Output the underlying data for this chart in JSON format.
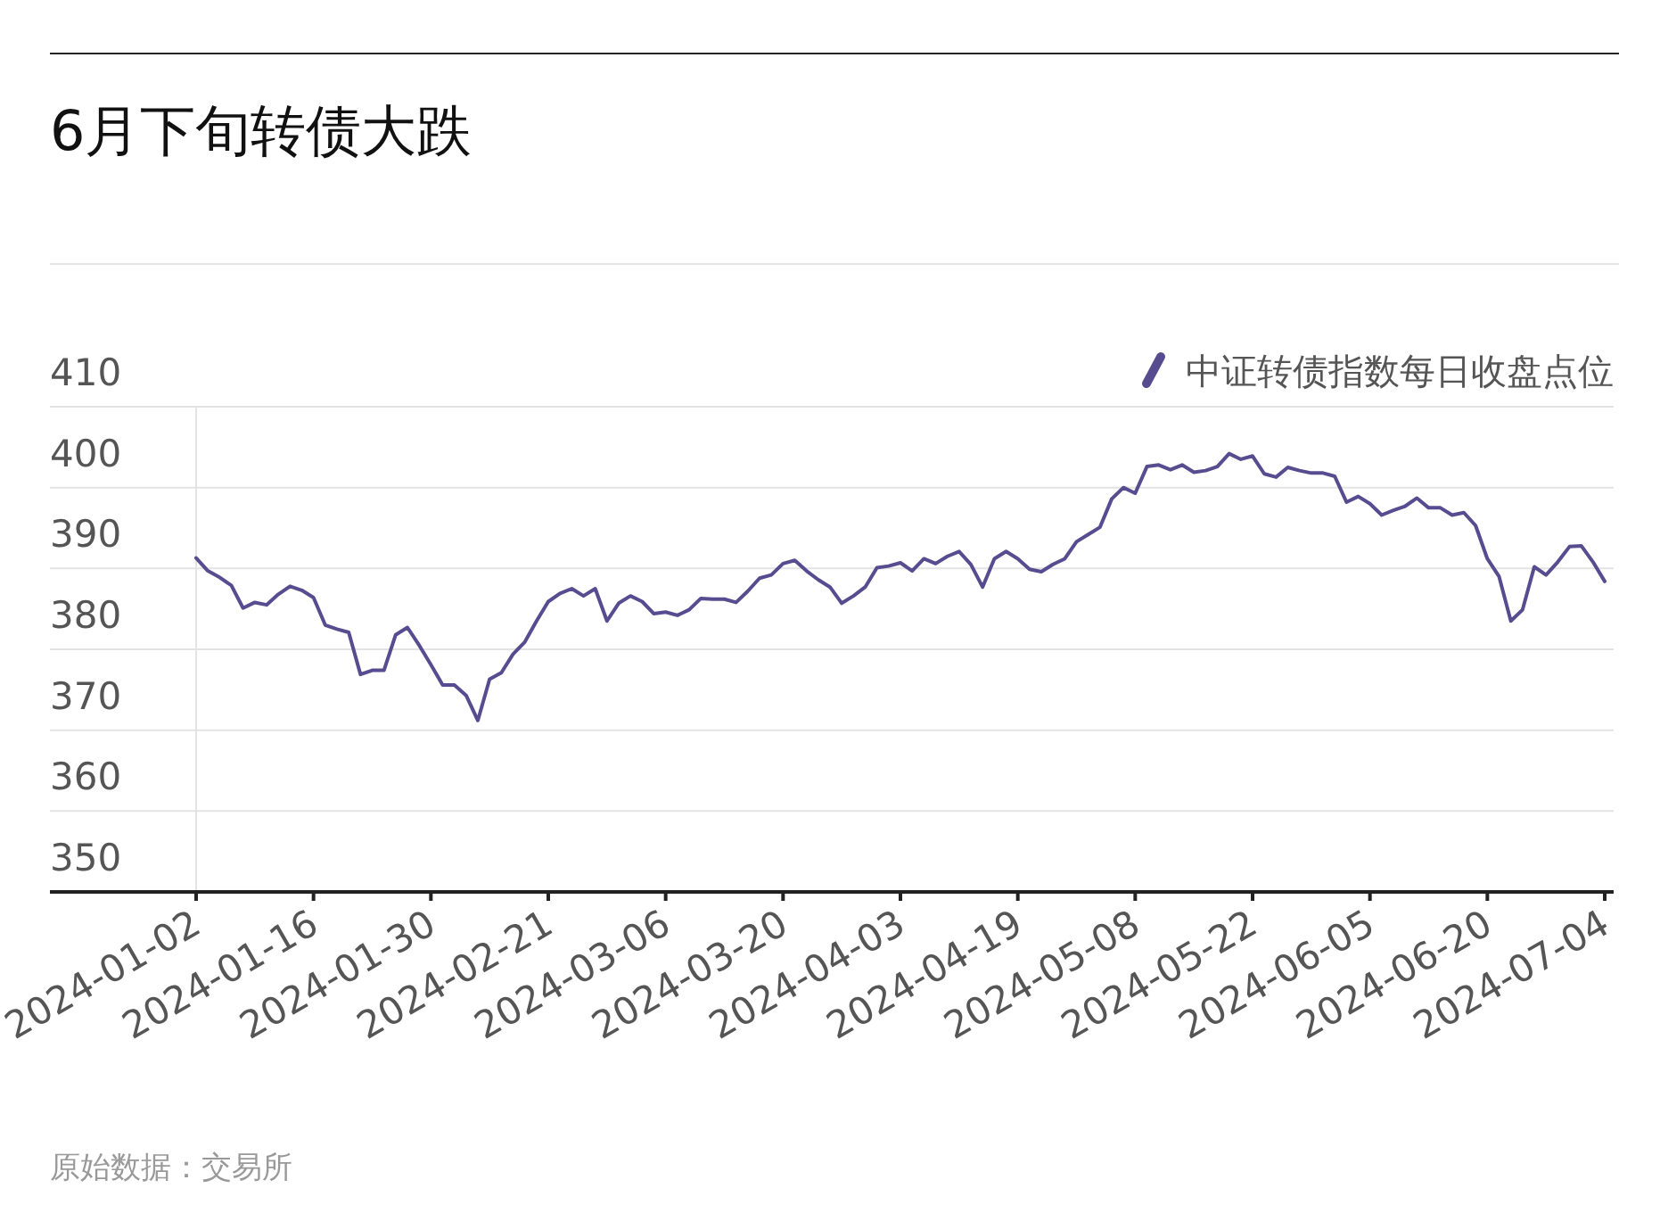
{
  "chart_data": {
    "type": "line",
    "title": "6月下旬转债大跌",
    "categories": [
      "2024-01-02",
      null,
      null,
      null,
      null,
      null,
      null,
      null,
      null,
      null,
      "2024-01-16",
      null,
      null,
      null,
      null,
      null,
      null,
      null,
      null,
      null,
      "2024-01-30",
      null,
      null,
      null,
      null,
      null,
      null,
      null,
      null,
      null,
      "2024-02-21",
      null,
      null,
      null,
      null,
      null,
      null,
      null,
      null,
      null,
      "2024-03-06",
      null,
      null,
      null,
      null,
      null,
      null,
      null,
      null,
      null,
      "2024-03-20",
      null,
      null,
      null,
      null,
      null,
      null,
      null,
      null,
      null,
      "2024-04-03",
      null,
      null,
      null,
      null,
      null,
      null,
      null,
      null,
      null,
      "2024-04-19",
      null,
      null,
      null,
      null,
      null,
      null,
      null,
      null,
      null,
      "2024-05-08",
      null,
      null,
      null,
      null,
      null,
      null,
      null,
      null,
      null,
      "2024-05-22",
      null,
      null,
      null,
      null,
      null,
      null,
      null,
      null,
      null,
      "2024-06-05",
      null,
      null,
      null,
      null,
      null,
      null,
      null,
      null,
      null,
      "2024-06-20",
      null,
      null,
      null,
      null,
      null,
      null,
      null,
      null,
      null,
      "2024-07-04"
    ],
    "series": [
      {
        "name": "中证转债指数每日收盘点位",
        "color": "#564c8f",
        "values": [
          391.3,
          389.7,
          388.9,
          387.9,
          385.1,
          385.8,
          385.5,
          386.8,
          387.8,
          387.3,
          386.4,
          383.0,
          382.5,
          382.1,
          376.9,
          377.4,
          377.4,
          381.8,
          382.7,
          380.5,
          378.1,
          375.6,
          375.6,
          374.3,
          371.2,
          376.3,
          377.1,
          379.4,
          380.9,
          383.5,
          385.9,
          386.9,
          387.5,
          386.6,
          387.5,
          383.5,
          385.7,
          386.6,
          385.9,
          384.4,
          384.6,
          384.2,
          384.9,
          386.3,
          386.2,
          386.2,
          385.8,
          387.2,
          388.8,
          389.2,
          390.6,
          391.0,
          389.7,
          388.6,
          387.7,
          385.7,
          386.6,
          387.7,
          390.1,
          390.3,
          390.7,
          389.7,
          391.2,
          390.6,
          391.5,
          392.1,
          390.5,
          387.7,
          391.2,
          392.1,
          391.2,
          389.9,
          389.6,
          390.5,
          391.2,
          393.3,
          394.2,
          395.1,
          398.6,
          400.0,
          399.3,
          402.6,
          402.8,
          402.2,
          402.8,
          401.9,
          402.1,
          402.6,
          404.2,
          403.5,
          403.9,
          401.7,
          401.3,
          402.5,
          402.1,
          401.8,
          401.8,
          401.4,
          398.2,
          398.9,
          398.0,
          396.6,
          397.2,
          397.7,
          398.7,
          397.5,
          397.5,
          396.6,
          396.9,
          395.3,
          391.2,
          389.0,
          383.5,
          384.9,
          390.2,
          389.2,
          390.8,
          392.7,
          392.8,
          390.8,
          388.4
        ]
      }
    ],
    "ylim": [
      350,
      410
    ],
    "yticks": [
      350,
      360,
      370,
      380,
      390,
      400,
      410
    ],
    "grid": "y",
    "legend": "top right",
    "annotations": [
      "原始数据：交易所"
    ]
  }
}
